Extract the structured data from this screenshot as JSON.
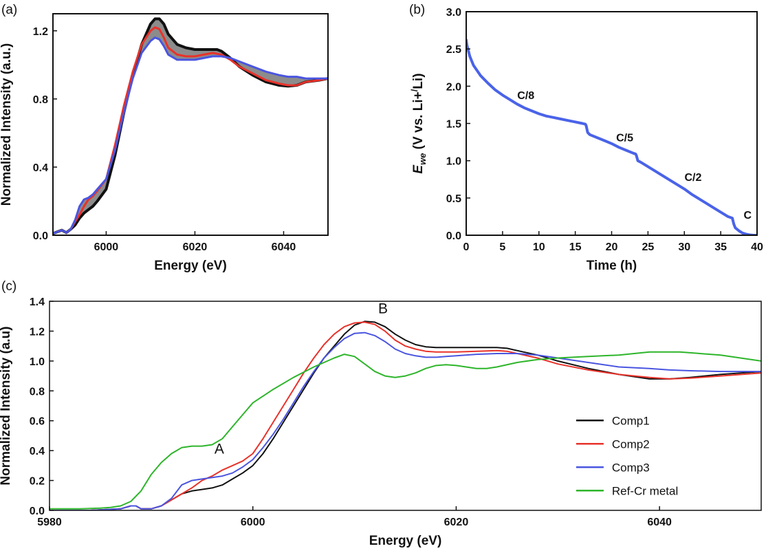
{
  "chart_data": [
    {
      "panel": "(a)",
      "type": "line",
      "xlabel": "Energy (eV)",
      "ylabel": "Normalized Intensity (a.u.)",
      "xlim": [
        5988,
        6050
      ],
      "ylim": [
        0.0,
        1.3
      ],
      "xticks": [
        6000,
        6020,
        6040
      ],
      "xtick_labels": [
        "6000",
        "6020",
        "6040"
      ],
      "yticks": [
        0.0,
        0.4,
        0.8,
        1.2
      ],
      "ytick_labels": [
        "0.0",
        "0.4",
        "0.8",
        "1.2"
      ],
      "series": [
        {
          "color": "#111111",
          "width": 4,
          "x": [
            5988,
            5989,
            5990,
            5991,
            5992,
            5993,
            5994,
            5995,
            5996,
            5997,
            5998,
            6000,
            6002,
            6004,
            6006,
            6008,
            6010,
            6011,
            6012,
            6013,
            6014,
            6016,
            6018,
            6020,
            6022,
            6024,
            6025,
            6026,
            6028,
            6030,
            6033,
            6036,
            6039,
            6041,
            6043,
            6045,
            6048,
            6050
          ],
          "y": [
            0.01,
            0.02,
            0.03,
            0.015,
            0.035,
            0.06,
            0.1,
            0.13,
            0.15,
            0.17,
            0.2,
            0.27,
            0.47,
            0.72,
            0.94,
            1.12,
            1.24,
            1.27,
            1.27,
            1.24,
            1.18,
            1.12,
            1.1,
            1.09,
            1.09,
            1.09,
            1.09,
            1.08,
            1.04,
            0.99,
            0.94,
            0.9,
            0.88,
            0.875,
            0.88,
            0.9,
            0.91,
            0.92
          ]
        },
        {
          "color": "#e8322a",
          "width": 3,
          "x": [
            5988,
            5989,
            5990,
            5991,
            5992,
            5993,
            5994,
            5995,
            5996,
            5997,
            5998,
            6000,
            6002,
            6004,
            6006,
            6008,
            6010,
            6011,
            6012,
            6013,
            6014,
            6016,
            6018,
            6020,
            6022,
            6024,
            6025,
            6026,
            6028,
            6030,
            6033,
            6036,
            6039,
            6041,
            6043,
            6045,
            6048,
            6050
          ],
          "y": [
            0.01,
            0.02,
            0.03,
            0.015,
            0.035,
            0.08,
            0.12,
            0.17,
            0.21,
            0.23,
            0.26,
            0.33,
            0.53,
            0.76,
            0.96,
            1.12,
            1.2,
            1.22,
            1.21,
            1.16,
            1.1,
            1.06,
            1.05,
            1.05,
            1.06,
            1.07,
            1.065,
            1.06,
            1.03,
            0.99,
            0.95,
            0.91,
            0.89,
            0.88,
            0.88,
            0.9,
            0.91,
            0.92
          ]
        },
        {
          "color": "#4a55e0",
          "width": 3,
          "x": [
            5988,
            5989,
            5990,
            5991,
            5992,
            5993,
            5994,
            5995,
            5996,
            5997,
            5998,
            6000,
            6002,
            6004,
            6006,
            6008,
            6010,
            6011,
            6012,
            6013,
            6014,
            6016,
            6018,
            6020,
            6022,
            6024,
            6025,
            6026,
            6028,
            6030,
            6033,
            6036,
            6039,
            6041,
            6043,
            6045,
            6048,
            6050
          ],
          "y": [
            0.01,
            0.02,
            0.03,
            0.015,
            0.035,
            0.09,
            0.17,
            0.21,
            0.22,
            0.24,
            0.27,
            0.33,
            0.5,
            0.72,
            0.92,
            1.07,
            1.14,
            1.16,
            1.15,
            1.11,
            1.06,
            1.03,
            1.03,
            1.03,
            1.04,
            1.05,
            1.05,
            1.05,
            1.04,
            1.02,
            0.99,
            0.96,
            0.94,
            0.93,
            0.93,
            0.92,
            0.92,
            0.92
          ]
        }
      ]
    },
    {
      "panel": "(b)",
      "type": "line",
      "xlabel": "Time (h)",
      "ylabel": "E_we (V vs. Li+/Li)",
      "xlim": [
        0,
        40
      ],
      "ylim": [
        0.0,
        3.0
      ],
      "xticks": [
        0,
        5,
        10,
        15,
        20,
        25,
        30,
        35,
        40
      ],
      "xtick_labels": [
        "0",
        "5",
        "10",
        "15",
        "20",
        "25",
        "30",
        "35",
        "40"
      ],
      "yticks": [
        0.0,
        0.5,
        1.0,
        1.5,
        2.0,
        2.5,
        3.0
      ],
      "ytick_labels": [
        "0.0",
        "0.5",
        "1.0",
        "1.5",
        "2.0",
        "2.5",
        "3.0"
      ],
      "annotations": [
        {
          "text": "C/8",
          "x": 8.2,
          "y": 1.83
        },
        {
          "text": "C/5",
          "x": 21.8,
          "y": 1.26
        },
        {
          "text": "C/2",
          "x": 31.2,
          "y": 0.73
        },
        {
          "text": "C",
          "x": 38.7,
          "y": 0.22
        }
      ],
      "series": [
        {
          "color": "#4a63e8",
          "width": 4,
          "x": [
            0,
            0.1,
            0.5,
            1,
            2,
            3,
            4,
            5,
            6,
            7,
            8,
            9,
            10,
            11,
            12,
            13,
            14,
            15,
            16,
            16.4,
            16.5,
            16.7,
            17,
            18,
            19,
            20,
            21,
            22,
            23,
            23.3,
            23.4,
            23.6,
            24,
            25,
            26,
            27,
            28,
            29,
            30,
            31,
            32,
            33,
            34,
            35,
            36,
            36.6,
            36.8,
            37,
            37.5,
            38,
            38.5,
            39,
            39.5,
            39.8
          ],
          "y": [
            2.62,
            2.55,
            2.4,
            2.28,
            2.14,
            2.04,
            1.95,
            1.88,
            1.82,
            1.76,
            1.71,
            1.67,
            1.63,
            1.6,
            1.58,
            1.56,
            1.54,
            1.52,
            1.5,
            1.49,
            1.47,
            1.38,
            1.35,
            1.31,
            1.27,
            1.23,
            1.18,
            1.14,
            1.1,
            1.09,
            1.07,
            1.0,
            0.98,
            0.92,
            0.86,
            0.8,
            0.74,
            0.68,
            0.62,
            0.55,
            0.49,
            0.43,
            0.37,
            0.31,
            0.25,
            0.23,
            0.15,
            0.1,
            0.06,
            0.03,
            0.015,
            0.005,
            0.0,
            0.0
          ]
        }
      ]
    },
    {
      "panel": "(c)",
      "type": "line",
      "xlabel": "Energy (eV)",
      "ylabel": "Normalized Intensity (a.u)",
      "xlim": [
        5980,
        6050
      ],
      "ylim": [
        0.0,
        1.4
      ],
      "xticks": [
        5980,
        6000,
        6020,
        6040
      ],
      "xtick_labels": [
        "5980",
        "6000",
        "6020",
        "6040"
      ],
      "yticks": [
        0.0,
        0.2,
        0.4,
        0.6,
        0.8,
        1.0,
        1.2,
        1.4
      ],
      "ytick_labels": [
        "0.0",
        "0.2",
        "0.4",
        "0.6",
        "0.8",
        "1.0",
        "1.2",
        "1.4"
      ],
      "annotations": [
        {
          "text": "A",
          "x": 5996.7,
          "y": 0.38
        },
        {
          "text": "B",
          "x": 6012.8,
          "y": 1.32
        }
      ],
      "legend": {
        "position": "lower-right"
      },
      "series": [
        {
          "name": "Comp1",
          "color": "#111111",
          "x": [
            5980,
            5984,
            5987,
            5988,
            5988.5,
            5989,
            5990,
            5991,
            5992,
            5993,
            5994,
            5995,
            5996,
            5997,
            5998,
            5999,
            6000,
            6001,
            6002,
            6003,
            6004,
            6005,
            6006,
            6007,
            6008,
            6009,
            6010,
            6011,
            6012,
            6013,
            6014,
            6015,
            6016,
            6017,
            6018,
            6019,
            6020,
            6022,
            6024,
            6025,
            6026,
            6028,
            6030,
            6033,
            6036,
            6039,
            6041,
            6043,
            6046,
            6050
          ],
          "y": [
            0.0,
            0.0,
            0.01,
            0.03,
            0.03,
            0.01,
            0.01,
            0.03,
            0.07,
            0.11,
            0.13,
            0.14,
            0.15,
            0.17,
            0.21,
            0.25,
            0.3,
            0.38,
            0.48,
            0.59,
            0.7,
            0.81,
            0.92,
            1.02,
            1.1,
            1.18,
            1.24,
            1.265,
            1.26,
            1.23,
            1.18,
            1.14,
            1.11,
            1.095,
            1.09,
            1.09,
            1.09,
            1.09,
            1.09,
            1.085,
            1.07,
            1.04,
            1.0,
            0.95,
            0.91,
            0.88,
            0.88,
            0.89,
            0.91,
            0.93
          ]
        },
        {
          "name": "Comp2",
          "color": "#e8322a",
          "x": [
            5980,
            5984,
            5987,
            5988,
            5988.5,
            5989,
            5990,
            5991,
            5992,
            5993,
            5994,
            5995,
            5996,
            5997,
            5998,
            5999,
            6000,
            6001,
            6002,
            6003,
            6004,
            6005,
            6006,
            6007,
            6008,
            6009,
            6010,
            6011,
            6012,
            6013,
            6014,
            6015,
            6016,
            6017,
            6018,
            6019,
            6020,
            6022,
            6024,
            6025,
            6026,
            6028,
            6030,
            6033,
            6036,
            6039,
            6041,
            6043,
            6046,
            6050
          ],
          "y": [
            0.0,
            0.0,
            0.01,
            0.03,
            0.03,
            0.01,
            0.01,
            0.03,
            0.07,
            0.11,
            0.15,
            0.2,
            0.23,
            0.27,
            0.3,
            0.33,
            0.38,
            0.48,
            0.59,
            0.7,
            0.81,
            0.92,
            1.02,
            1.11,
            1.18,
            1.23,
            1.255,
            1.26,
            1.245,
            1.2,
            1.14,
            1.1,
            1.08,
            1.065,
            1.06,
            1.06,
            1.06,
            1.065,
            1.07,
            1.065,
            1.05,
            1.02,
            0.98,
            0.94,
            0.91,
            0.89,
            0.88,
            0.885,
            0.9,
            0.92
          ]
        },
        {
          "name": "Comp3",
          "color": "#4a55e0",
          "x": [
            5980,
            5984,
            5987,
            5988,
            5988.5,
            5989,
            5990,
            5991,
            5992,
            5993,
            5994,
            5995,
            5996,
            5997,
            5998,
            5999,
            6000,
            6001,
            6002,
            6003,
            6004,
            6005,
            6006,
            6007,
            6008,
            6009,
            6010,
            6011,
            6012,
            6013,
            6014,
            6015,
            6016,
            6017,
            6018,
            6019,
            6020,
            6022,
            6024,
            6025,
            6026,
            6028,
            6030,
            6033,
            6036,
            6039,
            6041,
            6043,
            6046,
            6050
          ],
          "y": [
            0.0,
            0.0,
            0.01,
            0.03,
            0.03,
            0.01,
            0.01,
            0.03,
            0.08,
            0.17,
            0.2,
            0.21,
            0.22,
            0.23,
            0.25,
            0.29,
            0.34,
            0.42,
            0.51,
            0.61,
            0.72,
            0.83,
            0.93,
            1.02,
            1.09,
            1.15,
            1.185,
            1.19,
            1.17,
            1.13,
            1.08,
            1.05,
            1.035,
            1.025,
            1.025,
            1.03,
            1.035,
            1.045,
            1.05,
            1.05,
            1.05,
            1.04,
            1.02,
            0.99,
            0.96,
            0.95,
            0.94,
            0.935,
            0.93,
            0.93
          ]
        },
        {
          "name": "Ref-Cr metal",
          "color": "#2db52a",
          "x": [
            5980,
            5983,
            5985,
            5986,
            5987,
            5988,
            5989,
            5990,
            5991,
            5992,
            5993,
            5994,
            5995,
            5996,
            5997,
            5998,
            5999,
            6000,
            6002,
            6004,
            6006,
            6007,
            6008,
            6009,
            6010,
            6011,
            6012,
            6013,
            6014,
            6015,
            6016,
            6017,
            6018,
            6019,
            6020,
            6022,
            6023,
            6024,
            6026,
            6028,
            6030,
            6033,
            6036,
            6039,
            6042,
            6046,
            6050
          ],
          "y": [
            0.01,
            0.01,
            0.015,
            0.02,
            0.03,
            0.06,
            0.13,
            0.24,
            0.32,
            0.38,
            0.42,
            0.43,
            0.43,
            0.44,
            0.48,
            0.56,
            0.64,
            0.72,
            0.81,
            0.89,
            0.96,
            0.99,
            1.02,
            1.045,
            1.03,
            0.98,
            0.93,
            0.9,
            0.89,
            0.9,
            0.92,
            0.95,
            0.97,
            0.975,
            0.97,
            0.95,
            0.95,
            0.96,
            0.99,
            1.01,
            1.02,
            1.03,
            1.04,
            1.06,
            1.06,
            1.04,
            1.0
          ]
        }
      ]
    }
  ]
}
